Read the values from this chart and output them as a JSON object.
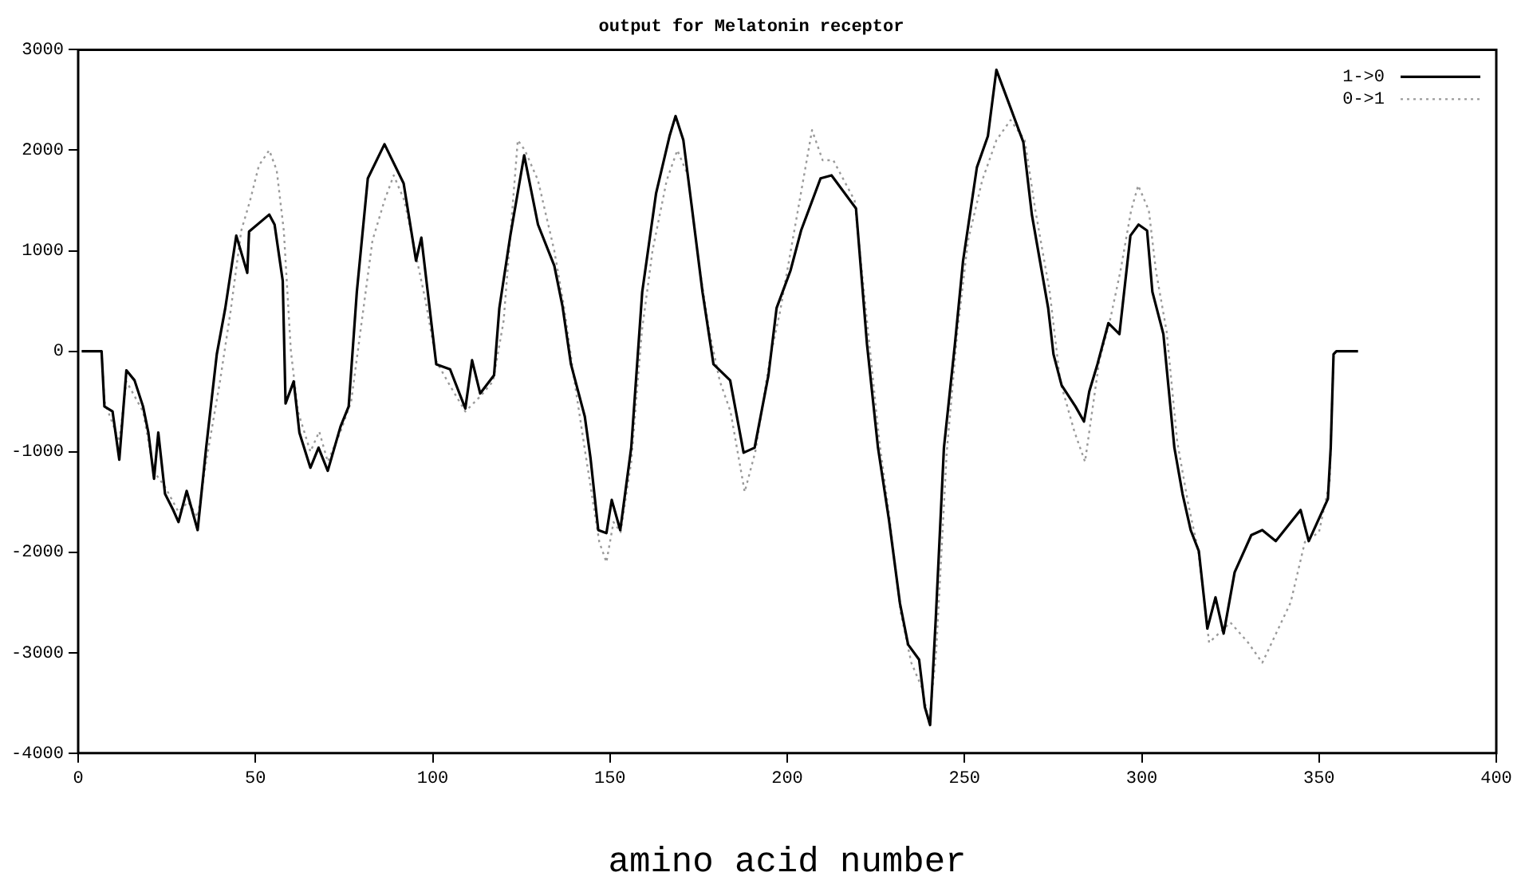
{
  "chart_data": {
    "type": "line",
    "title": "output for Melatonin receptor",
    "xlabel": "amino acid number",
    "xlim": [
      0,
      400
    ],
    "xticks": [
      0,
      50,
      100,
      150,
      200,
      250,
      300,
      350,
      400
    ],
    "ylim": [
      -4000,
      3000
    ],
    "yticks": [
      -4000,
      -3000,
      -2000,
      -1000,
      0,
      1000,
      2000,
      3000
    ],
    "grid": false,
    "legend": "top right",
    "marker": "none",
    "series": [
      {
        "name": "1->0",
        "color": "#000000",
        "line_style": "solid",
        "x": [
          1,
          6.6,
          7.4,
          9.7,
          11.6,
          13.6,
          15.9,
          18.3,
          19.8,
          21.4,
          22.6,
          24.5,
          26.8,
          28.3,
          30.6,
          33.7,
          36.1,
          39.1,
          41.5,
          44.6,
          47.7,
          48.2,
          53.9,
          55.4,
          57.7,
          58.5,
          60.8,
          62.4,
          65.5,
          67.8,
          70.4,
          74,
          76.3,
          78.6,
          81.7,
          86.4,
          91.8,
          95.3,
          96.8,
          101,
          104.9,
          109.2,
          111.1,
          113.4,
          117.3,
          118.8,
          121.9,
          125.8,
          129.7,
          134.3,
          136.6,
          139,
          142.9,
          144.5,
          146.7,
          149,
          150.5,
          152.9,
          156,
          159.1,
          163,
          166.8,
          168.5,
          170.7,
          173,
          176.1,
          179.2,
          183.9,
          187.7,
          190.8,
          194.7,
          197,
          200.9,
          203.9,
          209.4,
          212.5,
          219.4,
          222.5,
          225.6,
          228.7,
          231.8,
          234.1,
          237.2,
          238.8,
          240.3,
          241.9,
          244.2,
          247.3,
          249.6,
          253.5,
          256.6,
          259,
          266.6,
          269,
          273.6,
          275.1,
          277.4,
          281.3,
          283.7,
          285.2,
          287.5,
          290.6,
          293.7,
          296.8,
          299.1,
          301.5,
          303,
          306.1,
          309.2,
          311.5,
          313.8,
          316.1,
          318.5,
          320.8,
          323.1,
          326.2,
          330.9,
          334,
          337.8,
          344.8,
          347.1,
          352.5,
          353.3,
          354.1,
          354.9,
          361
        ],
        "values": [
          0,
          0,
          -550,
          -600,
          -1080,
          -190,
          -290,
          -550,
          -810,
          -1270,
          -810,
          -1420,
          -1580,
          -1700,
          -1390,
          -1780,
          -960,
          -30,
          430,
          1150,
          780,
          1190,
          1360,
          1260,
          700,
          -520,
          -300,
          -810,
          -1160,
          -960,
          -1190,
          -750,
          -550,
          590,
          1720,
          2060,
          1670,
          900,
          1130,
          -130,
          -180,
          -570,
          -90,
          -420,
          -240,
          430,
          1150,
          1950,
          1260,
          850,
          450,
          -130,
          -650,
          -1060,
          -1780,
          -1810,
          -1480,
          -1780,
          -960,
          590,
          1570,
          2140,
          2340,
          2100,
          1460,
          590,
          -130,
          -290,
          -1010,
          -960,
          -240,
          430,
          800,
          1200,
          1720,
          1750,
          1420,
          70,
          -960,
          -1680,
          -2510,
          -2920,
          -3070,
          -3540,
          -3720,
          -2660,
          -960,
          70,
          900,
          1830,
          2140,
          2800,
          2080,
          1360,
          430,
          -30,
          -340,
          -550,
          -700,
          -400,
          -130,
          280,
          170,
          1150,
          1260,
          1200,
          590,
          170,
          -960,
          -1420,
          -1780,
          -1990,
          -2760,
          -2450,
          -2810,
          -2200,
          -1830,
          -1780,
          -1890,
          -1580,
          -1890,
          -1470,
          -960,
          -30,
          0,
          0
        ]
      },
      {
        "name": "0->1",
        "color": "#9a9a9a",
        "line_style": "dotted",
        "x": [
          1,
          6.6,
          7.4,
          11.6,
          13.6,
          18.3,
          21.4,
          24.5,
          28.3,
          31,
          33.7,
          36.1,
          40,
          43,
          46,
          48.5,
          51,
          53.9,
          56,
          58,
          60,
          62,
          65.5,
          68,
          70.4,
          74,
          77,
          80,
          83,
          86.4,
          89,
          92,
          95.3,
          98,
          101,
          105,
          109.2,
          113.4,
          117,
          120,
          122,
          124,
          126,
          129.7,
          134.3,
          137,
          140,
          143,
          147,
          149,
          151,
          153,
          156,
          159,
          162,
          166,
          169,
          172,
          175,
          178,
          181,
          184,
          188,
          191,
          195,
          198,
          201,
          204,
          207,
          210,
          213,
          219,
          222.5,
          226,
          229,
          232,
          235,
          238,
          240,
          242,
          245,
          248,
          251,
          255,
          259,
          263,
          267,
          270,
          274,
          277,
          281,
          284,
          286,
          288,
          291,
          294,
          297,
          299,
          302,
          304,
          307,
          310,
          313,
          316,
          319,
          322,
          325,
          330,
          334,
          338,
          342,
          346,
          350,
          353,
          354.1,
          354.9,
          361
        ],
        "values": [
          0,
          0,
          -500,
          -900,
          -300,
          -600,
          -1200,
          -1350,
          -1600,
          -1500,
          -1650,
          -1100,
          -300,
          400,
          1200,
          1500,
          1850,
          2000,
          1800,
          1200,
          0,
          -600,
          -1000,
          -800,
          -1100,
          -800,
          -500,
          300,
          1100,
          1500,
          1750,
          1500,
          950,
          500,
          -100,
          -350,
          -600,
          -450,
          -300,
          300,
          1200,
          2100,
          2000,
          1700,
          1000,
          450,
          -300,
          -1000,
          -1900,
          -2100,
          -1700,
          -1800,
          -1100,
          200,
          1000,
          1700,
          2000,
          1750,
          900,
          200,
          -300,
          -600,
          -1400,
          -1000,
          -100,
          400,
          1000,
          1600,
          2200,
          1900,
          1900,
          1500,
          300,
          -900,
          -1700,
          -2600,
          -3100,
          -3350,
          -3700,
          -3000,
          -1000,
          200,
          1100,
          1700,
          2100,
          2300,
          2100,
          1400,
          600,
          -300,
          -800,
          -1100,
          -600,
          -100,
          300,
          800,
          1400,
          1650,
          1400,
          800,
          200,
          -900,
          -1500,
          -2000,
          -2900,
          -2800,
          -2700,
          -2900,
          -3100,
          -2800,
          -2500,
          -1900,
          -1800,
          -1300,
          -30,
          0,
          0
        ]
      }
    ]
  }
}
